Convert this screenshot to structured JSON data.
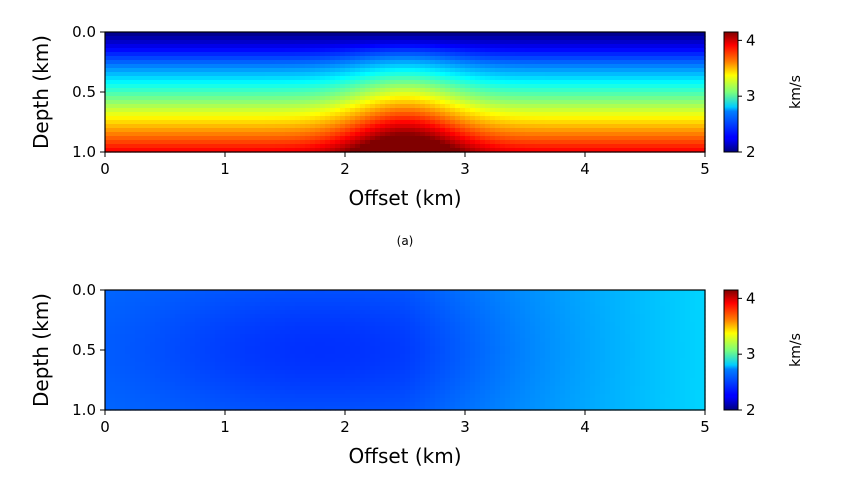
{
  "panels": [
    {
      "caption": "(a)",
      "chart_data": {
        "type": "heatmap",
        "title": "",
        "xlabel": "Offset (km)",
        "ylabel": "Depth (km)",
        "xlim": [
          0,
          5
        ],
        "ylim": [
          1.0,
          0.0
        ],
        "x_ticks": [
          0,
          1,
          2,
          3,
          4,
          5
        ],
        "y_ticks": [
          0.0,
          0.5,
          1.0
        ],
        "x_tick_labels": [
          "0",
          "1",
          "2",
          "3",
          "4",
          "5"
        ],
        "y_tick_labels": [
          "0.0",
          "0.5",
          "1.0"
        ],
        "colormap": "jet",
        "field": {
          "model": "true velocity: linear increase with depth plus Gaussian anomaly near offset 2.5 km",
          "v_top": 2.0,
          "v_bottom": 3.9,
          "anomaly_center_x": 2.5,
          "anomaly_amplitude": 0.6,
          "anomaly_width_km": 0.5
        },
        "colorbar": {
          "label": "km/s",
          "vmin": 2.0,
          "vmax": 4.15,
          "ticks": [
            2,
            3,
            4
          ],
          "tick_labels": [
            "2",
            "3",
            "4"
          ]
        }
      }
    },
    {
      "caption": "",
      "chart_data": {
        "type": "heatmap",
        "title": "",
        "xlabel": "Offset (km)",
        "ylabel": "Depth (km)",
        "xlim": [
          0,
          5
        ],
        "ylim": [
          1.0,
          0.0
        ],
        "x_ticks": [
          0,
          1,
          2,
          3,
          4,
          5
        ],
        "y_ticks": [
          0.0,
          0.5,
          1.0
        ],
        "x_tick_labels": [
          "0",
          "1",
          "2",
          "3",
          "4",
          "5"
        ],
        "y_tick_labels": [
          "0.0",
          "0.5",
          "1.0"
        ],
        "colormap": "jet",
        "field": {
          "model": "near-uniform initial velocity, slightly lower in the middle, higher toward right edge",
          "base": 2.5,
          "center_dip": 0.13,
          "center_x": 1.8,
          "center_depth": 0.5,
          "right_gradient": 0.22
        },
        "colorbar": {
          "label": "km/s",
          "vmin": 2.0,
          "vmax": 4.15,
          "ticks": [
            2,
            3,
            4
          ],
          "tick_labels": [
            "2",
            "3",
            "4"
          ]
        }
      }
    }
  ]
}
